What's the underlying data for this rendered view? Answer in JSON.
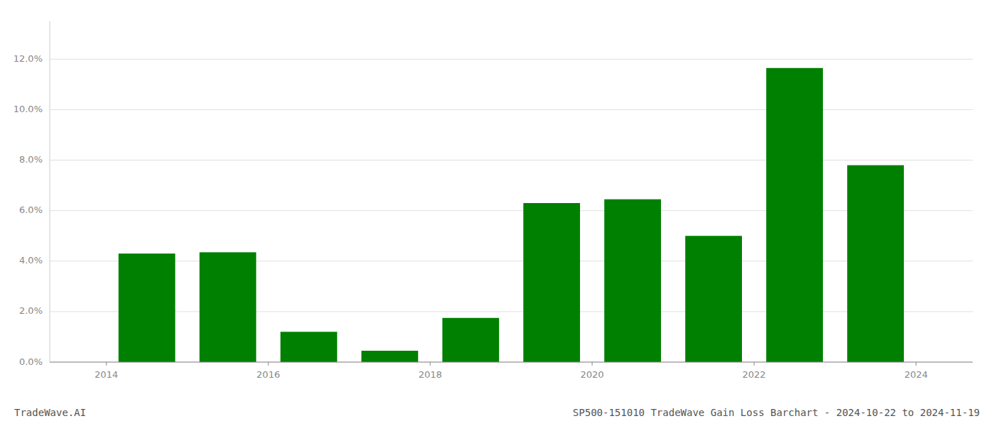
{
  "chart_data": {
    "type": "bar",
    "x": [
      2014,
      2015,
      2016,
      2017,
      2018,
      2019,
      2020,
      2021,
      2022,
      2023
    ],
    "values": [
      0.043,
      0.0435,
      0.012,
      0.0045,
      0.0175,
      0.063,
      0.0645,
      0.05,
      0.1165,
      0.078
    ],
    "color": "#008000",
    "xlim": [
      2012.8,
      2024.2
    ],
    "xticks": [
      {
        "value": 2013.5,
        "label": "2014"
      },
      {
        "value": 2015.5,
        "label": "2016"
      },
      {
        "value": 2017.5,
        "label": "2018"
      },
      {
        "value": 2019.5,
        "label": "2020"
      },
      {
        "value": 2021.5,
        "label": "2022"
      },
      {
        "value": 2023.5,
        "label": "2024"
      }
    ],
    "ylim": [
      0,
      0.135
    ],
    "yticks": [
      {
        "value": 0.0,
        "label": "0.0%"
      },
      {
        "value": 0.02,
        "label": "2.0%"
      },
      {
        "value": 0.04,
        "label": "4.0%"
      },
      {
        "value": 0.06,
        "label": "6.0%"
      },
      {
        "value": 0.08,
        "label": "8.0%"
      },
      {
        "value": 0.1,
        "label": "10.0%"
      },
      {
        "value": 0.12,
        "label": "12.0%"
      }
    ],
    "grid": true,
    "annotations": [
      "TradeWave.AI",
      "SP500-151010 TradeWave Gain Loss Barchart - 2024-10-22 to 2024-11-19"
    ]
  }
}
